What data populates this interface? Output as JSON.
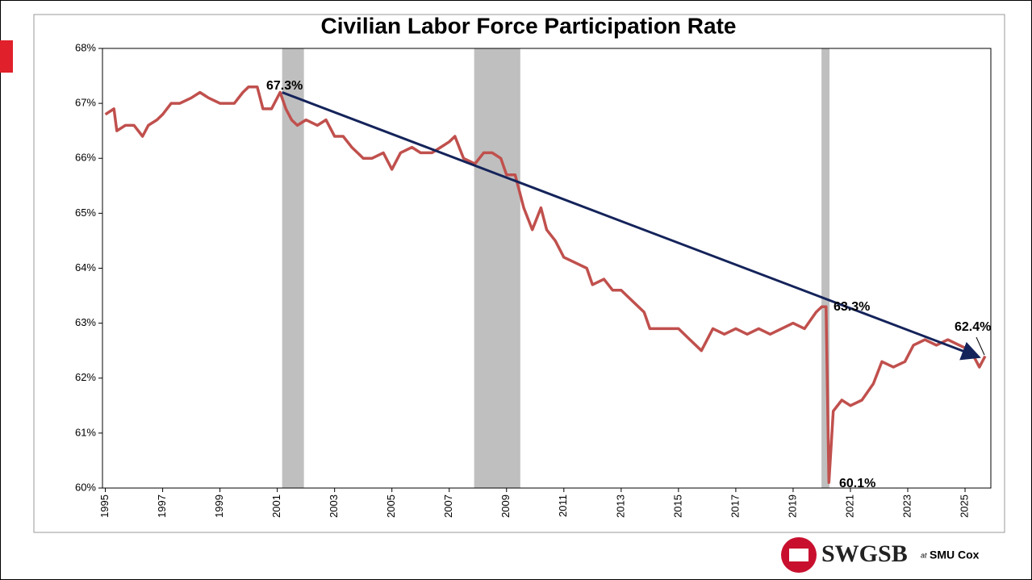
{
  "chart_data": {
    "type": "line",
    "title": "Civilian Labor Force Participation Rate",
    "x": [
      1995.0,
      1995.3,
      1995.4,
      1995.7,
      1996.0,
      1996.3,
      1996.5,
      1996.8,
      1997.0,
      1997.3,
      1997.6,
      1998.0,
      1998.3,
      1998.6,
      1999.0,
      1999.5,
      1999.8,
      2000.0,
      2000.3,
      2000.5,
      2000.8,
      2001.0,
      2001.1,
      2001.3,
      2001.5,
      2001.7,
      2002.0,
      2002.4,
      2002.7,
      2003.0,
      2003.3,
      2003.6,
      2003.8,
      2004.0,
      2004.3,
      2004.7,
      2005.0,
      2005.3,
      2005.7,
      2006.0,
      2006.4,
      2006.7,
      2007.0,
      2007.2,
      2007.5,
      2007.9,
      2008.2,
      2008.5,
      2008.8,
      2009.0,
      2009.3,
      2009.6,
      2009.9,
      2010.2,
      2010.4,
      2010.7,
      2011.0,
      2011.4,
      2011.8,
      2012.0,
      2012.4,
      2012.7,
      2013.0,
      2013.4,
      2013.8,
      2014.0,
      2014.4,
      2014.8,
      2015.0,
      2015.4,
      2015.8,
      2016.2,
      2016.6,
      2017.0,
      2017.4,
      2017.8,
      2018.2,
      2018.6,
      2019.0,
      2019.4,
      2019.8,
      2020.0,
      2020.15,
      2020.25,
      2020.4,
      2020.7,
      2021.0,
      2021.4,
      2021.8,
      2022.1,
      2022.5,
      2022.9,
      2023.2,
      2023.6,
      2024.0,
      2024.4,
      2024.8,
      2025.2,
      2025.5,
      2025.7
    ],
    "series": [
      {
        "name": "Participation Rate",
        "color": "#c0504d",
        "values": [
          66.8,
          66.9,
          66.5,
          66.6,
          66.6,
          66.4,
          66.6,
          66.7,
          66.8,
          67.0,
          67.0,
          67.1,
          67.2,
          67.1,
          67.0,
          67.0,
          67.2,
          67.3,
          67.3,
          66.9,
          66.9,
          67.1,
          67.2,
          66.9,
          66.7,
          66.6,
          66.7,
          66.6,
          66.7,
          66.4,
          66.4,
          66.2,
          66.1,
          66.0,
          66.0,
          66.1,
          65.8,
          66.1,
          66.2,
          66.1,
          66.1,
          66.2,
          66.3,
          66.4,
          66.0,
          65.9,
          66.1,
          66.1,
          66.0,
          65.7,
          65.7,
          65.1,
          64.7,
          65.1,
          64.7,
          64.5,
          64.2,
          64.1,
          64.0,
          63.7,
          63.8,
          63.6,
          63.6,
          63.4,
          63.2,
          62.9,
          62.9,
          62.9,
          62.9,
          62.7,
          62.5,
          62.9,
          62.8,
          62.9,
          62.8,
          62.9,
          62.8,
          62.9,
          63.0,
          62.9,
          63.2,
          63.3,
          63.3,
          60.1,
          61.4,
          61.6,
          61.5,
          61.6,
          61.9,
          62.3,
          62.2,
          62.3,
          62.6,
          62.7,
          62.6,
          62.7,
          62.6,
          62.5,
          62.2,
          62.4
        ]
      }
    ],
    "recessions": {
      "color": "#bfbfbf",
      "spans": [
        [
          2001.17,
          2001.93
        ],
        [
          2007.87,
          2009.48
        ],
        [
          2019.99,
          2020.27
        ]
      ]
    },
    "trend": {
      "color": "#14235a",
      "x": [
        2001.17,
        2025.4
      ],
      "values": [
        67.2,
        62.4
      ]
    },
    "annotations": [
      "67.3%",
      "63.3%",
      "62.4%",
      "60.1%"
    ],
    "xlim": [
      1994.9,
      2025.9
    ],
    "xticks": [
      1995,
      1997,
      1999,
      2001,
      2003,
      2005,
      2007,
      2009,
      2011,
      2013,
      2015,
      2017,
      2019,
      2021,
      2023,
      2025
    ],
    "ylim": [
      60,
      68
    ],
    "yticks": [
      {
        "value": 60,
        "label": "60%"
      },
      {
        "value": 61,
        "label": "61%"
      },
      {
        "value": 62,
        "label": "62%"
      },
      {
        "value": 63,
        "label": "63%"
      },
      {
        "value": 64,
        "label": "64%"
      },
      {
        "value": 65,
        "label": "65%"
      },
      {
        "value": 66,
        "label": "66%"
      },
      {
        "value": 67,
        "label": "67%"
      },
      {
        "value": 68,
        "label": "68%"
      }
    ]
  },
  "logo": {
    "name": "SWGSB",
    "at": "at",
    "school": "SMU Cox"
  }
}
